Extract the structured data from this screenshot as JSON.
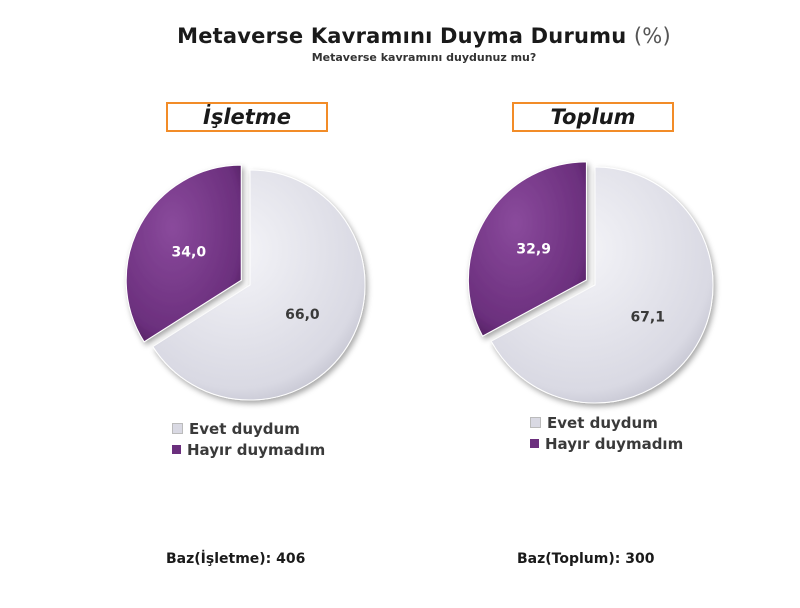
{
  "header": {
    "title": "Metaverse Kavramını Duyma Durumu",
    "title_unit": "(%)",
    "subtitle": "Metaverse kavramını duydunuz mu?"
  },
  "colors": {
    "evet": "#d9d9e3",
    "hayir": "#6b2f7d",
    "frame": "#f28c28"
  },
  "chart_data": [
    {
      "type": "pie",
      "title": "İşletme",
      "categories": [
        "Evet duydum",
        "Hayır duymadım"
      ],
      "values": [
        66.0,
        34.0
      ],
      "labels": [
        "66,0",
        "34,0"
      ],
      "base": "Baz(İşletme): 406",
      "legend": "below"
    },
    {
      "type": "pie",
      "title": "Toplum",
      "categories": [
        "Evet duydum",
        "Hayır duymadım"
      ],
      "values": [
        67.1,
        32.9
      ],
      "labels": [
        "67,1",
        "32,9"
      ],
      "base": "Baz(Toplum): 300",
      "legend": "below"
    }
  ]
}
